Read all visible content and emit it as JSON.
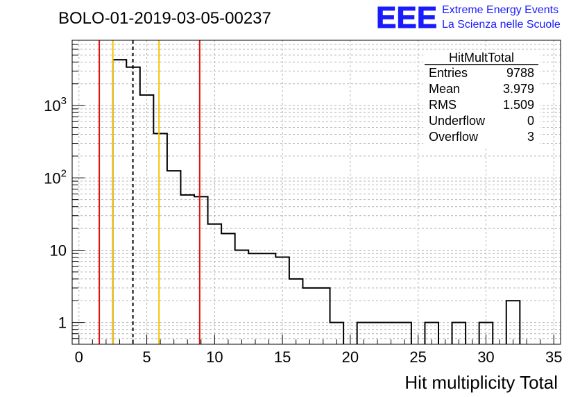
{
  "header": {
    "run_title": "BOLO-01-2019-03-05-00237",
    "logo_text": "EEE",
    "logo_line1": "Extreme Energy Events",
    "logo_line2": "La Scienza nelle Scuole",
    "logo_color": "#1a1aff"
  },
  "stats": {
    "name": "HitMultTotal",
    "rows": [
      {
        "label": "Entries",
        "value": "9788"
      },
      {
        "label": "Mean",
        "value": "3.979"
      },
      {
        "label": "RMS",
        "value": "1.509"
      },
      {
        "label": "Underflow",
        "value": "0"
      },
      {
        "label": "Overflow",
        "value": "3"
      }
    ]
  },
  "chart_data": {
    "type": "bar",
    "style": "step-histogram",
    "title": "",
    "xlabel": "Hit multiplicity Total",
    "ylabel": "",
    "xlim": [
      -0.5,
      35.5
    ],
    "ylim": [
      0.5,
      8000
    ],
    "log_y": true,
    "grid": true,
    "bins": [
      {
        "x0": 2.5,
        "x1": 3.5,
        "y": 4300
      },
      {
        "x0": 3.5,
        "x1": 4.5,
        "y": 3400
      },
      {
        "x0": 4.5,
        "x1": 5.5,
        "y": 1400
      },
      {
        "x0": 5.5,
        "x1": 6.5,
        "y": 410
      },
      {
        "x0": 6.5,
        "x1": 7.5,
        "y": 125
      },
      {
        "x0": 7.5,
        "x1": 8.5,
        "y": 58
      },
      {
        "x0": 8.5,
        "x1": 9.5,
        "y": 55
      },
      {
        "x0": 9.5,
        "x1": 10.5,
        "y": 23
      },
      {
        "x0": 10.5,
        "x1": 11.5,
        "y": 17
      },
      {
        "x0": 11.5,
        "x1": 12.5,
        "y": 10
      },
      {
        "x0": 12.5,
        "x1": 13.5,
        "y": 9
      },
      {
        "x0": 13.5,
        "x1": 14.5,
        "y": 9
      },
      {
        "x0": 14.5,
        "x1": 15.5,
        "y": 8
      },
      {
        "x0": 15.5,
        "x1": 16.5,
        "y": 4
      },
      {
        "x0": 16.5,
        "x1": 17.5,
        "y": 3
      },
      {
        "x0": 17.5,
        "x1": 18.5,
        "y": 3
      },
      {
        "x0": 18.5,
        "x1": 19.5,
        "y": 1
      },
      {
        "x0": 20.5,
        "x1": 24.5,
        "y": 1
      },
      {
        "x0": 25.5,
        "x1": 26.5,
        "y": 1
      },
      {
        "x0": 27.5,
        "x1": 28.5,
        "y": 1
      },
      {
        "x0": 29.5,
        "x1": 30.5,
        "y": 1
      },
      {
        "x0": 31.5,
        "x1": 32.5,
        "y": 2
      }
    ],
    "x_ticks": [
      {
        "value": 0,
        "label": "0"
      },
      {
        "value": 5,
        "label": "5"
      },
      {
        "value": 10,
        "label": "10"
      },
      {
        "value": 15,
        "label": "15"
      },
      {
        "value": 20,
        "label": "20"
      },
      {
        "value": 25,
        "label": "25"
      },
      {
        "value": 30,
        "label": "30"
      },
      {
        "value": 35,
        "label": "35"
      }
    ],
    "y_ticks": [
      {
        "value": 1,
        "base": "1",
        "exp": ""
      },
      {
        "value": 10,
        "base": "10",
        "exp": ""
      },
      {
        "value": 100,
        "base": "10",
        "exp": "2"
      },
      {
        "value": 1000,
        "base": "10",
        "exp": "3"
      }
    ],
    "markers": [
      {
        "x": 1.5,
        "color": "#e01010",
        "style": "solid"
      },
      {
        "x": 2.5,
        "color": "#f5c400",
        "style": "solid"
      },
      {
        "x": 3.979,
        "color": "#000000",
        "style": "dashed"
      },
      {
        "x": 5.9,
        "color": "#f5c400",
        "style": "solid"
      },
      {
        "x": 8.9,
        "color": "#e01010",
        "style": "solid"
      }
    ]
  }
}
